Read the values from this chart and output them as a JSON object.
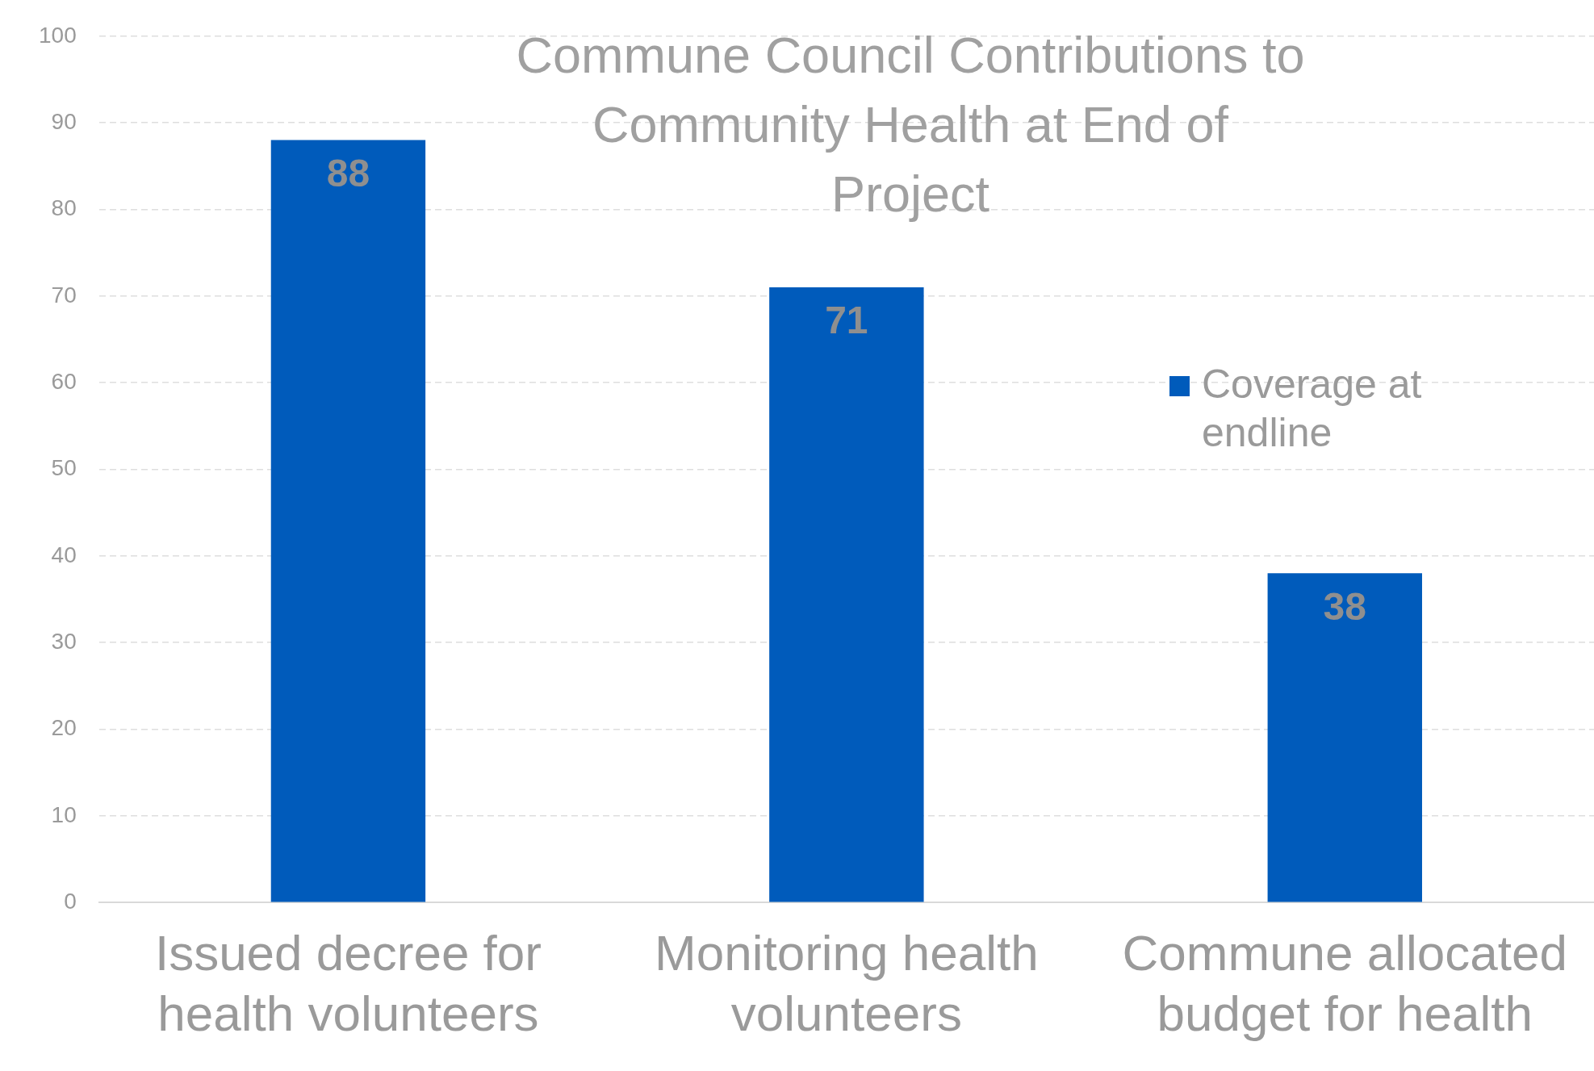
{
  "chart_data": {
    "type": "bar",
    "title": "Commune Council Contributions to Community Health at End of Project",
    "categories": [
      "Issued decree for health volunteers",
      "Monitoring health volunteers",
      "Commune allocated budget for health"
    ],
    "series": [
      {
        "name": "Coverage at endline",
        "color": "#005bbb",
        "values": [
          88,
          71,
          38
        ]
      }
    ],
    "ylim": [
      0,
      100
    ],
    "yticks": [
      0,
      10,
      20,
      30,
      40,
      50,
      60,
      70,
      80,
      90,
      100
    ],
    "grid": "y",
    "legend": "right",
    "data_labels": true
  }
}
